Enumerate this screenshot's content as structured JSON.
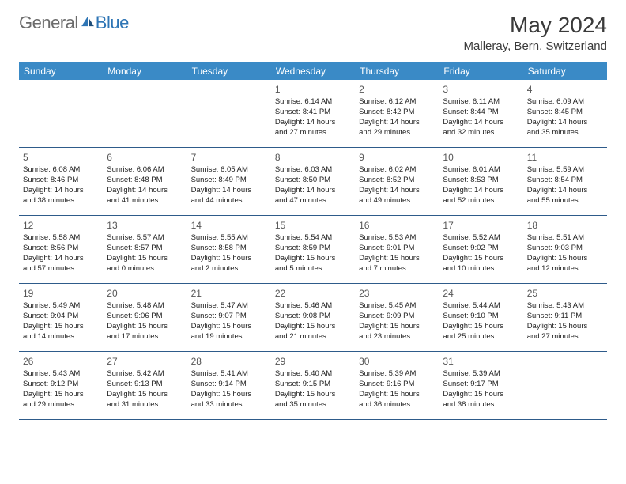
{
  "brand": {
    "part1": "General",
    "part2": "Blue"
  },
  "title": "May 2024",
  "location": "Malleray, Bern, Switzerland",
  "colors": {
    "header_bg": "#3a8ac6",
    "row_border": "#2e5b8a",
    "brand_blue": "#2e75b5",
    "brand_grey": "#6b6b6b"
  },
  "dayHeaders": [
    "Sunday",
    "Monday",
    "Tuesday",
    "Wednesday",
    "Thursday",
    "Friday",
    "Saturday"
  ],
  "weeks": [
    [
      null,
      null,
      null,
      {
        "d": "1",
        "sr": "Sunrise: 6:14 AM",
        "ss": "Sunset: 8:41 PM",
        "dl1": "Daylight: 14 hours",
        "dl2": "and 27 minutes."
      },
      {
        "d": "2",
        "sr": "Sunrise: 6:12 AM",
        "ss": "Sunset: 8:42 PM",
        "dl1": "Daylight: 14 hours",
        "dl2": "and 29 minutes."
      },
      {
        "d": "3",
        "sr": "Sunrise: 6:11 AM",
        "ss": "Sunset: 8:44 PM",
        "dl1": "Daylight: 14 hours",
        "dl2": "and 32 minutes."
      },
      {
        "d": "4",
        "sr": "Sunrise: 6:09 AM",
        "ss": "Sunset: 8:45 PM",
        "dl1": "Daylight: 14 hours",
        "dl2": "and 35 minutes."
      }
    ],
    [
      {
        "d": "5",
        "sr": "Sunrise: 6:08 AM",
        "ss": "Sunset: 8:46 PM",
        "dl1": "Daylight: 14 hours",
        "dl2": "and 38 minutes."
      },
      {
        "d": "6",
        "sr": "Sunrise: 6:06 AM",
        "ss": "Sunset: 8:48 PM",
        "dl1": "Daylight: 14 hours",
        "dl2": "and 41 minutes."
      },
      {
        "d": "7",
        "sr": "Sunrise: 6:05 AM",
        "ss": "Sunset: 8:49 PM",
        "dl1": "Daylight: 14 hours",
        "dl2": "and 44 minutes."
      },
      {
        "d": "8",
        "sr": "Sunrise: 6:03 AM",
        "ss": "Sunset: 8:50 PM",
        "dl1": "Daylight: 14 hours",
        "dl2": "and 47 minutes."
      },
      {
        "d": "9",
        "sr": "Sunrise: 6:02 AM",
        "ss": "Sunset: 8:52 PM",
        "dl1": "Daylight: 14 hours",
        "dl2": "and 49 minutes."
      },
      {
        "d": "10",
        "sr": "Sunrise: 6:01 AM",
        "ss": "Sunset: 8:53 PM",
        "dl1": "Daylight: 14 hours",
        "dl2": "and 52 minutes."
      },
      {
        "d": "11",
        "sr": "Sunrise: 5:59 AM",
        "ss": "Sunset: 8:54 PM",
        "dl1": "Daylight: 14 hours",
        "dl2": "and 55 minutes."
      }
    ],
    [
      {
        "d": "12",
        "sr": "Sunrise: 5:58 AM",
        "ss": "Sunset: 8:56 PM",
        "dl1": "Daylight: 14 hours",
        "dl2": "and 57 minutes."
      },
      {
        "d": "13",
        "sr": "Sunrise: 5:57 AM",
        "ss": "Sunset: 8:57 PM",
        "dl1": "Daylight: 15 hours",
        "dl2": "and 0 minutes."
      },
      {
        "d": "14",
        "sr": "Sunrise: 5:55 AM",
        "ss": "Sunset: 8:58 PM",
        "dl1": "Daylight: 15 hours",
        "dl2": "and 2 minutes."
      },
      {
        "d": "15",
        "sr": "Sunrise: 5:54 AM",
        "ss": "Sunset: 8:59 PM",
        "dl1": "Daylight: 15 hours",
        "dl2": "and 5 minutes."
      },
      {
        "d": "16",
        "sr": "Sunrise: 5:53 AM",
        "ss": "Sunset: 9:01 PM",
        "dl1": "Daylight: 15 hours",
        "dl2": "and 7 minutes."
      },
      {
        "d": "17",
        "sr": "Sunrise: 5:52 AM",
        "ss": "Sunset: 9:02 PM",
        "dl1": "Daylight: 15 hours",
        "dl2": "and 10 minutes."
      },
      {
        "d": "18",
        "sr": "Sunrise: 5:51 AM",
        "ss": "Sunset: 9:03 PM",
        "dl1": "Daylight: 15 hours",
        "dl2": "and 12 minutes."
      }
    ],
    [
      {
        "d": "19",
        "sr": "Sunrise: 5:49 AM",
        "ss": "Sunset: 9:04 PM",
        "dl1": "Daylight: 15 hours",
        "dl2": "and 14 minutes."
      },
      {
        "d": "20",
        "sr": "Sunrise: 5:48 AM",
        "ss": "Sunset: 9:06 PM",
        "dl1": "Daylight: 15 hours",
        "dl2": "and 17 minutes."
      },
      {
        "d": "21",
        "sr": "Sunrise: 5:47 AM",
        "ss": "Sunset: 9:07 PM",
        "dl1": "Daylight: 15 hours",
        "dl2": "and 19 minutes."
      },
      {
        "d": "22",
        "sr": "Sunrise: 5:46 AM",
        "ss": "Sunset: 9:08 PM",
        "dl1": "Daylight: 15 hours",
        "dl2": "and 21 minutes."
      },
      {
        "d": "23",
        "sr": "Sunrise: 5:45 AM",
        "ss": "Sunset: 9:09 PM",
        "dl1": "Daylight: 15 hours",
        "dl2": "and 23 minutes."
      },
      {
        "d": "24",
        "sr": "Sunrise: 5:44 AM",
        "ss": "Sunset: 9:10 PM",
        "dl1": "Daylight: 15 hours",
        "dl2": "and 25 minutes."
      },
      {
        "d": "25",
        "sr": "Sunrise: 5:43 AM",
        "ss": "Sunset: 9:11 PM",
        "dl1": "Daylight: 15 hours",
        "dl2": "and 27 minutes."
      }
    ],
    [
      {
        "d": "26",
        "sr": "Sunrise: 5:43 AM",
        "ss": "Sunset: 9:12 PM",
        "dl1": "Daylight: 15 hours",
        "dl2": "and 29 minutes."
      },
      {
        "d": "27",
        "sr": "Sunrise: 5:42 AM",
        "ss": "Sunset: 9:13 PM",
        "dl1": "Daylight: 15 hours",
        "dl2": "and 31 minutes."
      },
      {
        "d": "28",
        "sr": "Sunrise: 5:41 AM",
        "ss": "Sunset: 9:14 PM",
        "dl1": "Daylight: 15 hours",
        "dl2": "and 33 minutes."
      },
      {
        "d": "29",
        "sr": "Sunrise: 5:40 AM",
        "ss": "Sunset: 9:15 PM",
        "dl1": "Daylight: 15 hours",
        "dl2": "and 35 minutes."
      },
      {
        "d": "30",
        "sr": "Sunrise: 5:39 AM",
        "ss": "Sunset: 9:16 PM",
        "dl1": "Daylight: 15 hours",
        "dl2": "and 36 minutes."
      },
      {
        "d": "31",
        "sr": "Sunrise: 5:39 AM",
        "ss": "Sunset: 9:17 PM",
        "dl1": "Daylight: 15 hours",
        "dl2": "and 38 minutes."
      },
      null
    ]
  ]
}
